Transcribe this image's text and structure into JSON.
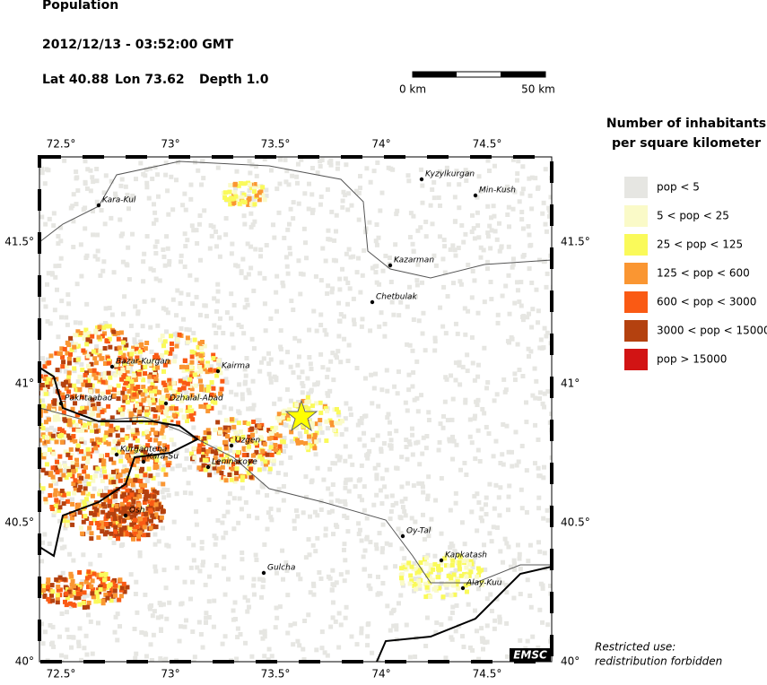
{
  "header": {
    "title": "Population",
    "datetime": "2012/12/13 - 03:52:00 GMT",
    "lat": "Lat 40.88",
    "lon": "Lon 73.62",
    "depth": "Depth  1.0"
  },
  "scale": {
    "start": "0 km",
    "end": "50 km"
  },
  "legend": {
    "title": [
      "Number of inhabitants",
      "per square kilometer"
    ],
    "items": [
      {
        "label": "pop < 5",
        "color": "#e6e6e2"
      },
      {
        "label": "5 < pop < 25",
        "color": "#fafac8"
      },
      {
        "label": "25 < pop < 125",
        "color": "#fafa5a"
      },
      {
        "label": "125 < pop < 600",
        "color": "#fa9632"
      },
      {
        "label": "600 < pop < 3000",
        "color": "#fa5a14"
      },
      {
        "label": "3000 < pop < 15000",
        "color": "#b4410f"
      },
      {
        "label": "pop > 15000",
        "color": "#d21414"
      }
    ]
  },
  "axes": {
    "lon": [
      "72.5°",
      "73°",
      "73.5°",
      "74°",
      "74.5°"
    ],
    "lat": [
      "41.5°",
      "41°",
      "40.5°",
      "40°"
    ]
  },
  "cities": [
    "Kara-Kul",
    "Kyzylkurgan",
    "Min-Kush",
    "Kazarman",
    "Chetbulak",
    "Bazar-Kurgan",
    "Kairma",
    "Pakhtaabad",
    "Dzhalal-Abad",
    "Uzgen",
    "Kurganteba",
    "Kara-Su",
    "Leninskoye",
    "Osh",
    "Oy-Tal",
    "Kapkatash",
    "Gulcha",
    "Alay-Kuu"
  ],
  "badge": "EMSC",
  "notice": [
    "Restricted use:",
    "redistribution forbidden"
  ]
}
